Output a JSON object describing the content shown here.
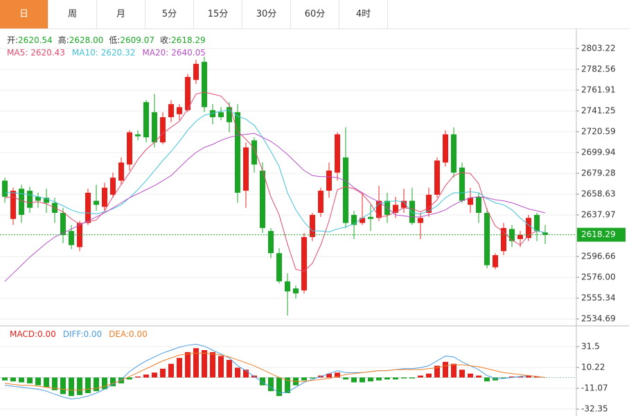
{
  "tabs": [
    "日",
    "周",
    "月",
    "5分",
    "15分",
    "30分",
    "60分",
    "4时"
  ],
  "selected_tab": 0,
  "chart_data": [
    {
      "type": "candlestick",
      "info": [
        {
          "label": "开:",
          "value": "2620.54"
        },
        {
          "label": "高:",
          "value": "2628.00"
        },
        {
          "label": "低:",
          "value": "2609.07"
        },
        {
          "label": "收:",
          "value": "2618.29"
        }
      ],
      "up_color": "#e8201c",
      "down_color": "#1aa524",
      "open": [
        2672,
        2634,
        2664,
        2662,
        2656,
        2655,
        2650,
        2640,
        2622,
        2606,
        2630,
        2652,
        2646,
        2658,
        2672,
        2688,
        2718,
        2750,
        2740,
        2710,
        2735,
        2738,
        2742,
        2772,
        2790,
        2742,
        2740,
        2745,
        2740,
        2662,
        2712,
        2682,
        2622,
        2600,
        2572,
        2565,
        2563,
        2616,
        2640,
        2662,
        2680,
        2695,
        2638,
        2630,
        2636,
        2635,
        2652,
        2640,
        2645,
        2652,
        2630,
        2640,
        2658,
        2690,
        2718,
        2685,
        2648,
        2656,
        2640,
        2586,
        2602,
        2624,
        2614,
        2615,
        2638,
        2620.54
      ],
      "high": [
        2675,
        2665,
        2668,
        2666,
        2660,
        2664,
        2655,
        2645,
        2628,
        2632,
        2664,
        2668,
        2670,
        2680,
        2695,
        2722,
        2722,
        2752,
        2758,
        2740,
        2752,
        2748,
        2778,
        2792,
        2795,
        2748,
        2745,
        2750,
        2748,
        2710,
        2715,
        2690,
        2625,
        2605,
        2580,
        2568,
        2620,
        2640,
        2665,
        2690,
        2720,
        2725,
        2642,
        2660,
        2648,
        2667,
        2660,
        2656,
        2664,
        2665,
        2640,
        2665,
        2695,
        2722,
        2725,
        2690,
        2665,
        2660,
        2645,
        2600,
        2630,
        2628,
        2622,
        2638,
        2640,
        2628
      ],
      "low": [
        2650,
        2628,
        2630,
        2640,
        2645,
        2640,
        2630,
        2610,
        2604,
        2602,
        2628,
        2642,
        2642,
        2655,
        2668,
        2682,
        2712,
        2710,
        2705,
        2708,
        2730,
        2732,
        2740,
        2768,
        2740,
        2728,
        2732,
        2720,
        2650,
        2645,
        2680,
        2620,
        2595,
        2570,
        2538,
        2555,
        2560,
        2612,
        2636,
        2655,
        2672,
        2625,
        2614,
        2628,
        2622,
        2632,
        2630,
        2635,
        2640,
        2628,
        2614,
        2636,
        2655,
        2686,
        2675,
        2650,
        2640,
        2630,
        2585,
        2584,
        2598,
        2606,
        2606,
        2612,
        2612,
        2609.07
      ],
      "close": [
        2656,
        2662,
        2638,
        2645,
        2652,
        2650,
        2640,
        2618,
        2608,
        2630,
        2660,
        2648,
        2665,
        2675,
        2690,
        2720,
        2716,
        2715,
        2710,
        2735,
        2748,
        2745,
        2775,
        2788,
        2745,
        2735,
        2735,
        2730,
        2660,
        2705,
        2688,
        2625,
        2600,
        2572,
        2562,
        2560,
        2616,
        2638,
        2662,
        2682,
        2718,
        2630,
        2628,
        2635,
        2634,
        2652,
        2638,
        2648,
        2652,
        2630,
        2635,
        2658,
        2692,
        2718,
        2680,
        2652,
        2655,
        2640,
        2588,
        2598,
        2625,
        2612,
        2618,
        2635,
        2622,
        2618.29
      ],
      "ma": [
        {
          "name": "MA5:",
          "color": "#e3496b",
          "values": [
            2655,
            2656,
            2652,
            2650,
            2651,
            2649,
            2645,
            2641,
            2634,
            2629,
            2631,
            2633,
            2642,
            2656,
            2668,
            2680,
            2693,
            2703,
            2710,
            2719,
            2725,
            2731,
            2743,
            2758,
            2760,
            2758,
            2756,
            2747,
            2721,
            2713,
            2704,
            2682,
            2656,
            2638,
            2609,
            2584,
            2582,
            2590,
            2608,
            2632,
            2663,
            2666,
            2664,
            2659,
            2649,
            2636,
            2637,
            2641,
            2645,
            2644,
            2641,
            2645,
            2653,
            2667,
            2677,
            2680,
            2679,
            2669,
            2643,
            2627,
            2621,
            2613,
            2608,
            2618,
            2622,
            2620.43
          ]
        },
        {
          "name": "MA10:",
          "color": "#3fc1d6",
          "values": [
            2660,
            2660,
            2659,
            2658,
            2656,
            2654,
            2651,
            2647,
            2643,
            2640,
            2640,
            2639,
            2641,
            2644,
            2648,
            2655,
            2663,
            2672,
            2682,
            2692,
            2701,
            2711,
            2722,
            2731,
            2737,
            2739,
            2741,
            2742,
            2736,
            2733,
            2727,
            2715,
            2701,
            2686,
            2660,
            2643,
            2631,
            2622,
            2622,
            2621,
            2624,
            2626,
            2629,
            2635,
            2640,
            2649,
            2651,
            2652,
            2651,
            2640,
            2639,
            2642,
            2647,
            2655,
            2660,
            2660,
            2661,
            2660,
            2654,
            2650,
            2648,
            2643,
            2635,
            2628,
            2622,
            2620.32
          ]
        },
        {
          "name": "MA20:",
          "color": "#b64ec6",
          "values": [
            2572,
            2580,
            2588,
            2596,
            2603,
            2610,
            2616,
            2620,
            2624,
            2628,
            2632,
            2636,
            2640,
            2645,
            2650,
            2655,
            2659,
            2663,
            2667,
            2672,
            2677,
            2685,
            2693,
            2700,
            2705,
            2708,
            2712,
            2715,
            2717,
            2718,
            2719,
            2715,
            2711,
            2705,
            2698,
            2690,
            2682,
            2677,
            2676,
            2676,
            2675,
            2672,
            2665,
            2660,
            2655,
            2651,
            2645,
            2638,
            2637,
            2636,
            2636,
            2638,
            2640,
            2643,
            2648,
            2652,
            2655,
            2656,
            2655,
            2653,
            2652,
            2650,
            2647,
            2644,
            2642,
            2640.05
          ]
        }
      ],
      "ylim": [
        2527.8,
        2820.4
      ],
      "yticks": [
        2803.22,
        2782.56,
        2761.91,
        2741.25,
        2720.59,
        2699.94,
        2679.28,
        2658.63,
        2637.97,
        {
          "value": 2596.66,
          "label": "2596.66"
        },
        {
          "value": 2576,
          "label": "2576.00"
        },
        2555.34,
        2534.69
      ],
      "current_color": "#1aa524"
    },
    {
      "type": "macd",
      "legend": [
        {
          "label": "MACD:",
          "value": "0.00",
          "color": "#e8201c"
        },
        {
          "label": "DIFF:",
          "value": "0.00",
          "color": "#4a9be0"
        },
        {
          "label": "DEA:",
          "value": "0.00",
          "color": "#f07d24"
        }
      ],
      "histogram": [
        -3,
        -4,
        -5,
        -6,
        -8,
        -10,
        -13,
        -17,
        -19,
        -18,
        -16,
        -14,
        -12,
        -9,
        -6,
        -2,
        1,
        3,
        5,
        9,
        14,
        20,
        26,
        30,
        28,
        26,
        22,
        18,
        10,
        8,
        2,
        -8,
        -14,
        -19,
        -16,
        -8,
        -3,
        -1,
        2,
        4,
        5,
        -2,
        -5,
        -5,
        -4,
        -3,
        -2,
        -2,
        -1,
        -1,
        2,
        4,
        12,
        16,
        14,
        8,
        4,
        2,
        -4,
        -3,
        -1,
        1,
        1,
        2,
        1,
        0
      ],
      "diff": [
        -8,
        -9,
        -10,
        -11,
        -12,
        -14,
        -17,
        -20,
        -22,
        -21,
        -19,
        -16,
        -12,
        -7,
        -2,
        6,
        12,
        17,
        21,
        25,
        28,
        31,
        33,
        34,
        32,
        28,
        24,
        20,
        12,
        7,
        1,
        -5,
        -10,
        -16,
        -15,
        -10,
        -5,
        -2,
        1,
        4,
        7,
        5,
        5,
        5,
        6,
        7,
        7,
        8,
        9,
        9,
        10,
        12,
        17,
        22,
        21,
        16,
        12,
        8,
        2,
        -1,
        -1,
        0,
        1,
        2,
        1,
        0
      ],
      "dea": [
        -6,
        -7,
        -8,
        -8,
        -9,
        -10,
        -11,
        -12,
        -13,
        -13,
        -12,
        -11,
        -9,
        -6,
        -3,
        1,
        5,
        9,
        13,
        17,
        20,
        23,
        24,
        25,
        25,
        24,
        23,
        21,
        18,
        15,
        12,
        8,
        4,
        0,
        -3,
        -4,
        -4,
        -3,
        -2,
        -1,
        1,
        3,
        4,
        5,
        6,
        7,
        7,
        8,
        8,
        8,
        8,
        9,
        10,
        12,
        13,
        13,
        12,
        11,
        9,
        7,
        5,
        4,
        3,
        2,
        1,
        0
      ],
      "ylim": [
        -39.4,
        51.4
      ],
      "yticks": [
        31.5,
        10.22,
        -11.07,
        -32.35
      ]
    }
  ]
}
